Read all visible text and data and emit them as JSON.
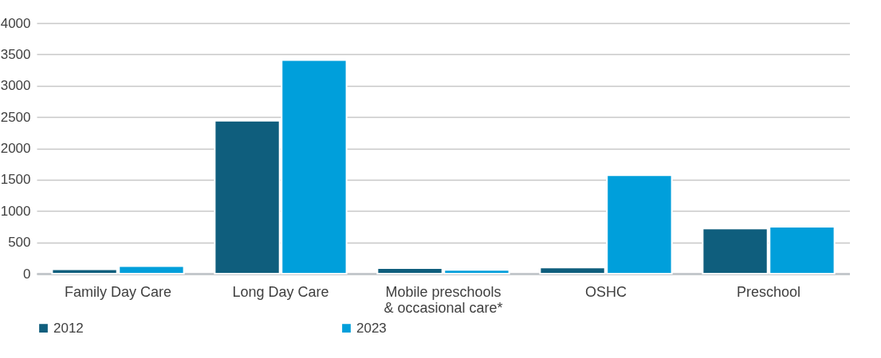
{
  "chart_data": {
    "type": "bar",
    "categories": [
      "Family Day Care",
      "Long Day Care",
      "Mobile preschools & occasional care*",
      "OSHC",
      "Preschool"
    ],
    "series": [
      {
        "name": "2012",
        "color": "#0f5e7d",
        "values": [
          70,
          2440,
          90,
          100,
          720
        ]
      },
      {
        "name": "2023",
        "color": "#009fdb",
        "values": [
          120,
          3410,
          60,
          1570,
          750
        ]
      }
    ],
    "ylim": [
      0,
      4000
    ],
    "yticks": [
      0,
      500,
      1000,
      1500,
      2000,
      2500,
      3000,
      3500,
      4000
    ],
    "grid": "y",
    "legend": "bottom"
  }
}
